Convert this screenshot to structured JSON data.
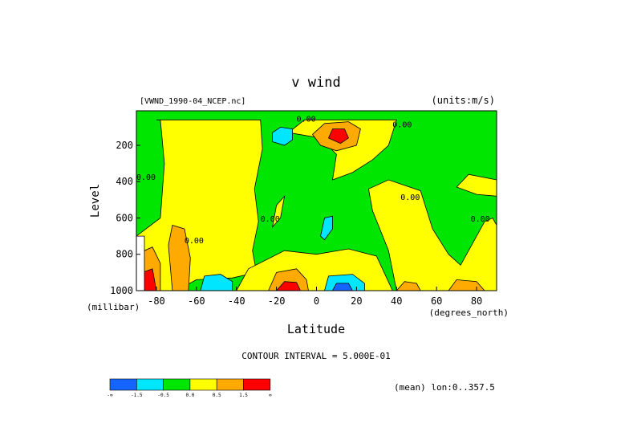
{
  "chart_data": {
    "type": "heatmap",
    "title": "v wind",
    "dataset_label": "[VWND_1990-04_NCEP.nc]",
    "units_label": "(units:m/s)",
    "xlabel": "Latitude",
    "ylabel": "Level",
    "x_unit": "(degrees_north)",
    "y_unit": "(millibar)",
    "xlim": [
      -90,
      90
    ],
    "ylim": [
      1000,
      10
    ],
    "x_ticks": [
      -80,
      -60,
      -40,
      -20,
      0,
      20,
      40,
      60,
      80
    ],
    "x_tick_labels": [
      "-80",
      "-60",
      "-40",
      "-20",
      "0",
      "20",
      "40",
      "60",
      "80"
    ],
    "y_ticks": [
      200,
      400,
      600,
      800,
      1000
    ],
    "y_tick_labels": [
      "200",
      "400",
      "600",
      "800",
      "1000"
    ],
    "contour_interval_text": "CONTOUR INTERVAL = 5.000E-01",
    "mean_text": "(mean) lon:0..357.5",
    "contour_labels": [
      {
        "text": "0.00",
        "lat": -90,
        "level": 390
      },
      {
        "text": "0.00",
        "lat": -66,
        "level": 740
      },
      {
        "text": "0.00",
        "lat": -28,
        "level": 620
      },
      {
        "text": "0.00",
        "lat": -10,
        "level": 70
      },
      {
        "text": "0.00",
        "lat": 38,
        "level": 100
      },
      {
        "text": "0.00",
        "lat": 42,
        "level": 500
      },
      {
        "text": "0.00",
        "lat": 77,
        "level": 620
      }
    ],
    "colorbar": {
      "colors": [
        "#1464ff",
        "#00e6ff",
        "#00e600",
        "#ffff00",
        "#ffaa00",
        "#ff0000"
      ],
      "labels": [
        "-∞",
        "-1.5",
        "-0.5",
        "0.0",
        "0.5",
        "1.5",
        "∞"
      ]
    },
    "regions": [
      {
        "color": "#00e600",
        "lat": [
          -90,
          90
        ],
        "level": [
          10,
          1000
        ]
      },
      {
        "color": "#ffff00",
        "points": [
          [
            -80,
            60
          ],
          [
            -28,
            60
          ],
          [
            -27,
            220
          ],
          [
            -31,
            440
          ],
          [
            -29,
            620
          ],
          [
            -32,
            780
          ],
          [
            -30,
            900
          ],
          [
            -42,
            930
          ],
          [
            -60,
            940
          ],
          [
            -70,
            1000
          ],
          [
            -90,
            1000
          ],
          [
            -90,
            700
          ],
          [
            -78,
            600
          ],
          [
            -76,
            300
          ],
          [
            -78,
            60
          ]
        ]
      },
      {
        "color": "#ffff00",
        "points": [
          [
            -14,
            130
          ],
          [
            -6,
            60
          ],
          [
            40,
            60
          ],
          [
            36,
            200
          ],
          [
            28,
            280
          ],
          [
            18,
            350
          ],
          [
            8,
            390
          ],
          [
            10,
            250
          ],
          [
            2,
            160
          ]
        ]
      },
      {
        "color": "#ffff00",
        "points": [
          [
            -22,
            650
          ],
          [
            -20,
            530
          ],
          [
            -16,
            480
          ],
          [
            -18,
            600
          ]
        ]
      },
      {
        "color": "#ffff00",
        "points": [
          [
            -40,
            1000
          ],
          [
            -34,
            880
          ],
          [
            -16,
            780
          ],
          [
            0,
            800
          ],
          [
            16,
            770
          ],
          [
            30,
            810
          ],
          [
            38,
            1000
          ]
        ]
      },
      {
        "color": "#ffff00",
        "points": [
          [
            40,
            1000
          ],
          [
            36,
            780
          ],
          [
            28,
            560
          ],
          [
            26,
            440
          ],
          [
            36,
            390
          ],
          [
            52,
            450
          ],
          [
            58,
            660
          ],
          [
            66,
            800
          ],
          [
            72,
            860
          ],
          [
            80,
            700
          ],
          [
            84,
            620
          ],
          [
            88,
            600
          ],
          [
            90,
            640
          ],
          [
            90,
            1000
          ]
        ]
      },
      {
        "color": "#ffff00",
        "points": [
          [
            70,
            430
          ],
          [
            76,
            360
          ],
          [
            90,
            390
          ],
          [
            90,
            480
          ],
          [
            80,
            470
          ]
        ]
      },
      {
        "color": "#ffaa00",
        "points": [
          [
            -2,
            140
          ],
          [
            4,
            80
          ],
          [
            16,
            70
          ],
          [
            22,
            110
          ],
          [
            20,
            200
          ],
          [
            10,
            230
          ],
          [
            2,
            200
          ]
        ]
      },
      {
        "color": "#ffaa00",
        "points": [
          [
            -72,
            1000
          ],
          [
            -74,
            750
          ],
          [
            -72,
            640
          ],
          [
            -66,
            660
          ],
          [
            -63,
            820
          ],
          [
            -64,
            1000
          ]
        ]
      },
      {
        "color": "#ffaa00",
        "points": [
          [
            -24,
            1000
          ],
          [
            -20,
            900
          ],
          [
            -10,
            880
          ],
          [
            -5,
            940
          ],
          [
            -4,
            1000
          ]
        ]
      },
      {
        "color": "#ffaa00",
        "points": [
          [
            40,
            1000
          ],
          [
            44,
            950
          ],
          [
            50,
            960
          ],
          [
            52,
            1000
          ]
        ]
      },
      {
        "color": "#ffaa00",
        "points": [
          [
            66,
            1000
          ],
          [
            70,
            940
          ],
          [
            80,
            950
          ],
          [
            84,
            1000
          ]
        ]
      },
      {
        "color": "#ffaa00",
        "points": [
          [
            -90,
            1000
          ],
          [
            -90,
            800
          ],
          [
            -82,
            760
          ],
          [
            -78,
            850
          ],
          [
            -78,
            1000
          ]
        ]
      },
      {
        "color": "#ff0000",
        "points": [
          [
            6,
            160
          ],
          [
            8,
            110
          ],
          [
            14,
            110
          ],
          [
            16,
            160
          ],
          [
            12,
            190
          ]
        ]
      },
      {
        "color": "#ff0000",
        "points": [
          [
            -20,
            1000
          ],
          [
            -16,
            950
          ],
          [
            -10,
            955
          ],
          [
            -8,
            1000
          ]
        ]
      },
      {
        "color": "#ff0000",
        "points": [
          [
            -87,
            1000
          ],
          [
            -87,
            900
          ],
          [
            -82,
            880
          ],
          [
            -80,
            1000
          ]
        ]
      },
      {
        "color": "#00e6ff",
        "points": [
          [
            -22,
            130
          ],
          [
            -18,
            100
          ],
          [
            -12,
            110
          ],
          [
            -12,
            170
          ],
          [
            -16,
            200
          ],
          [
            -22,
            180
          ]
        ]
      },
      {
        "color": "#00e6ff",
        "points": [
          [
            2,
            700
          ],
          [
            4,
            600
          ],
          [
            8,
            590
          ],
          [
            8,
            660
          ],
          [
            4,
            720
          ]
        ]
      },
      {
        "color": "#00e6ff",
        "points": [
          [
            -58,
            1000
          ],
          [
            -56,
            920
          ],
          [
            -48,
            910
          ],
          [
            -42,
            950
          ],
          [
            -42,
            1000
          ]
        ]
      },
      {
        "color": "#00e6ff",
        "points": [
          [
            4,
            1000
          ],
          [
            6,
            920
          ],
          [
            18,
            910
          ],
          [
            24,
            960
          ],
          [
            24,
            1000
          ]
        ]
      },
      {
        "color": "#1464ff",
        "points": [
          [
            8,
            1000
          ],
          [
            10,
            960
          ],
          [
            16,
            960
          ],
          [
            18,
            1000
          ]
        ]
      },
      {
        "color": "#ffffff",
        "points": [
          [
            -90,
            1000
          ],
          [
            -90,
            700
          ],
          [
            -86,
            700
          ],
          [
            -86,
            1000
          ]
        ]
      }
    ]
  }
}
